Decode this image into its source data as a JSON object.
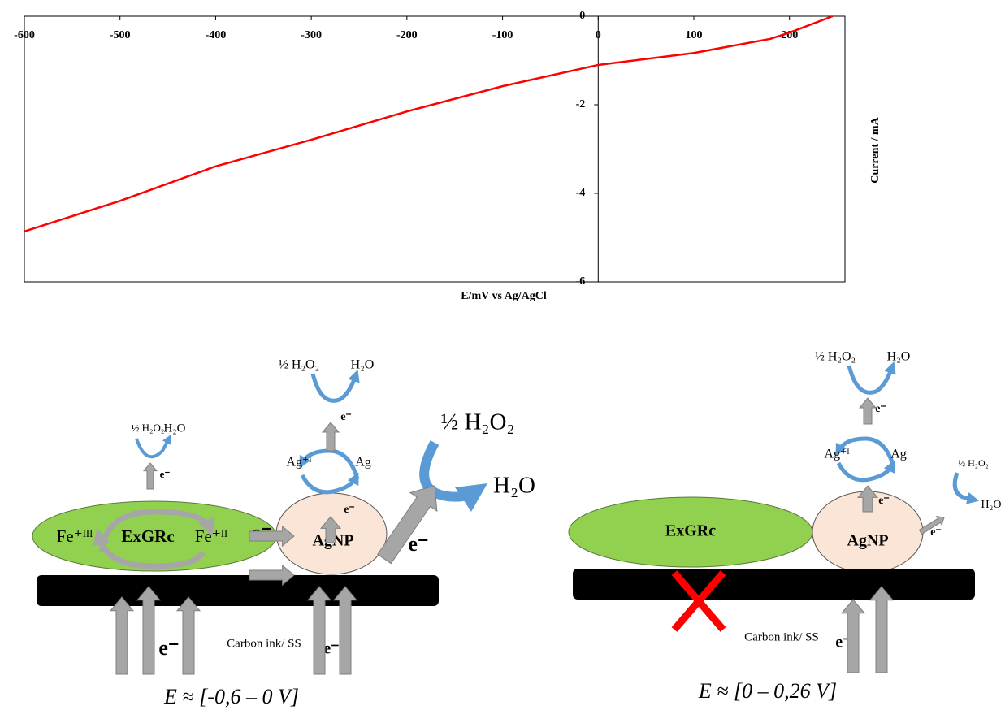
{
  "chart_data": {
    "type": "line",
    "x": [
      -600,
      -500,
      -400,
      -300,
      -200,
      -100,
      0,
      100,
      180,
      200,
      245
    ],
    "values": [
      -4.86,
      -4.17,
      -3.39,
      -2.79,
      -2.15,
      -1.58,
      -1.1,
      -0.83,
      -0.51,
      -0.37,
      0
    ],
    "color": "#ff0000",
    "xlim": [
      -600,
      258
    ],
    "xticks": [
      -600,
      -500,
      -400,
      -300,
      -200,
      -100,
      0,
      100,
      200
    ],
    "ylim": [
      -6,
      0
    ],
    "yticks": [
      0,
      -2,
      -4,
      -6
    ],
    "x_label": "E/mV  vs Ag/AgCl",
    "y_label": "Current / mA"
  },
  "diagrams": [
    {
      "labels": [
        "½ H₂O₂",
        "H₂O",
        "e⁻",
        "Fe⁺ᴵᴵᴵ",
        "ExGRc",
        "Fe⁺ᴵᴵ",
        "e⁻",
        "AgNP",
        "e⁻",
        "Ag⁺ᴵ",
        "Ag",
        "e⁻",
        "½ H₂O₂",
        "H₂O",
        "½ H₂O₂",
        "H₂O",
        "e⁻",
        "Carbon ink/  SS",
        "e⁻",
        "e⁻"
      ],
      "caption": "E ≈ [-0,6 – 0 V]"
    },
    {
      "labels": [
        "½ H₂O₂",
        "H₂O",
        "e⁻",
        "Ag⁺ᴵ",
        "Ag",
        "e⁻",
        "AgNP",
        "ExGRc",
        "½ H₂O₂",
        "H₂O",
        "e⁻",
        "Carbon ink/  SS",
        "e⁻"
      ],
      "caption": "E ≈ [0 – 0,26 V]"
    }
  ]
}
